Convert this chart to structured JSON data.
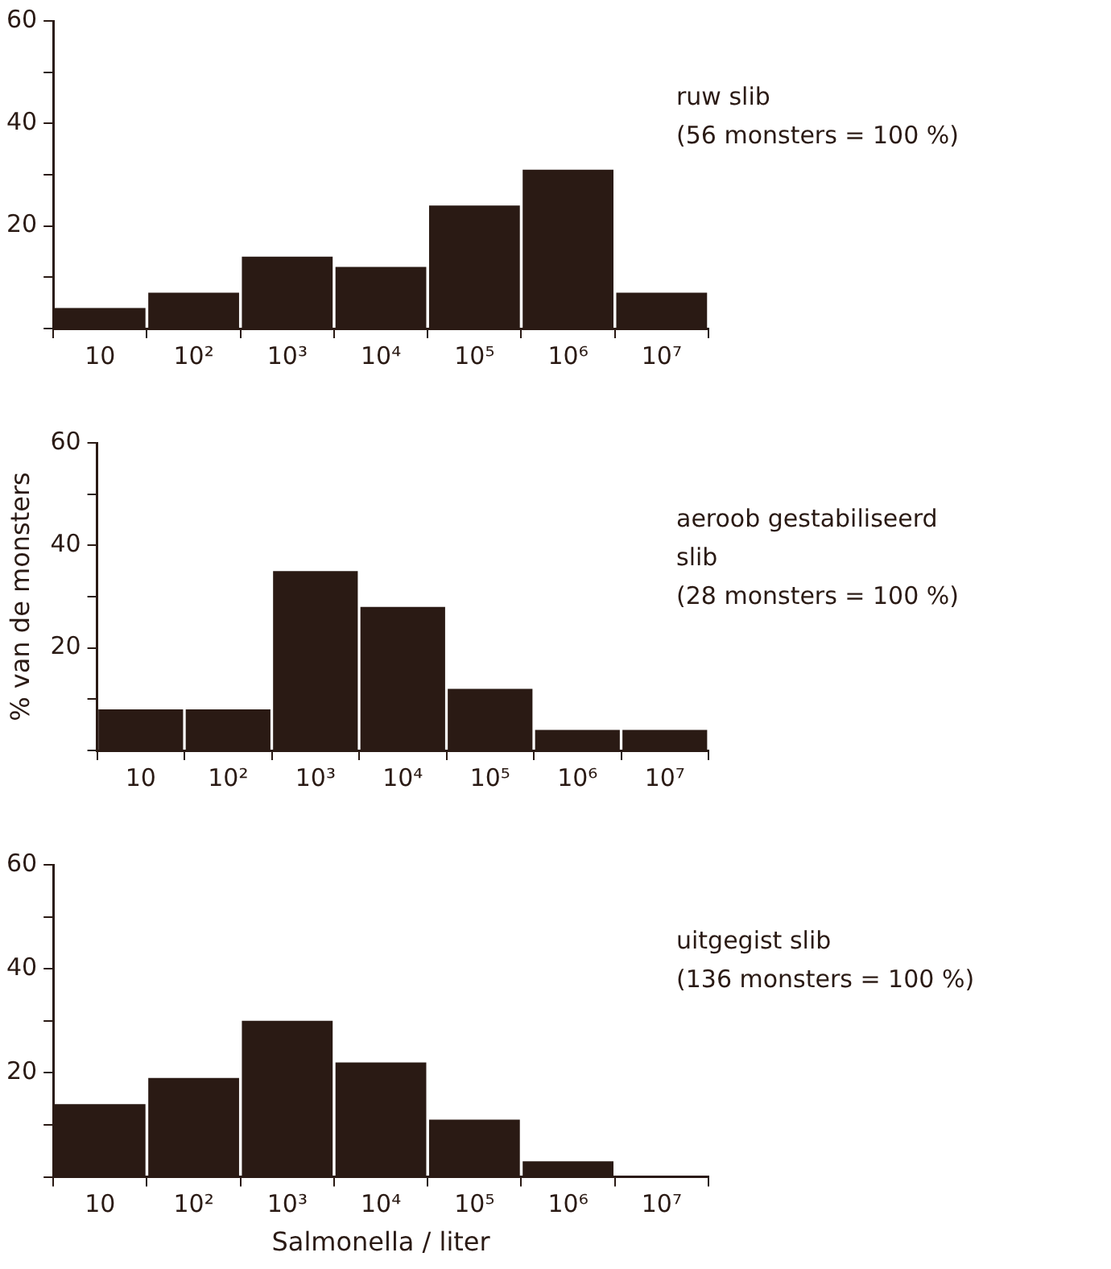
{
  "chart_data": [
    {
      "type": "bar",
      "categories": [
        "10",
        "10²",
        "10³",
        "10⁴",
        "10⁵",
        "10⁶",
        "10⁷"
      ],
      "values": [
        4,
        7,
        14,
        12,
        24,
        31,
        7
      ],
      "color": "#2a1a14",
      "ylim": [
        0,
        60
      ],
      "yticks": [
        {
          "value": 0,
          "label": null
        },
        {
          "value": 10,
          "label": null
        },
        20,
        {
          "value": 30,
          "label": null
        },
        40,
        {
          "value": 50,
          "label": null
        },
        60
      ],
      "grid": false,
      "legend": false,
      "annotations": [
        "ruw slib",
        "(56 monsters = 100 %)"
      ]
    },
    {
      "type": "bar",
      "categories": [
        "10",
        "10²",
        "10³",
        "10⁴",
        "10⁵",
        "10⁶",
        "10⁷"
      ],
      "values": [
        8,
        8,
        35,
        28,
        12,
        4,
        4
      ],
      "color": "#2a1a14",
      "ylim": [
        0,
        60
      ],
      "yticks": [
        {
          "value": 0,
          "label": null
        },
        {
          "value": 10,
          "label": null
        },
        20,
        {
          "value": 30,
          "label": null
        },
        40,
        {
          "value": 50,
          "label": null
        },
        60
      ],
      "grid": false,
      "legend": false,
      "ylabel": "% van de monsters",
      "annotations": [
        "aeroob gestabiliseerd",
        "slib",
        "(28 monsters = 100 %)"
      ]
    },
    {
      "type": "bar",
      "categories": [
        "10",
        "10²",
        "10³",
        "10⁴",
        "10⁵",
        "10⁶",
        "10⁷"
      ],
      "values": [
        14,
        19,
        30,
        22,
        11,
        3,
        0
      ],
      "color": "#2a1a14",
      "ylim": [
        0,
        60
      ],
      "yticks": [
        {
          "value": 0,
          "label": null
        },
        {
          "value": 10,
          "label": null
        },
        20,
        {
          "value": 30,
          "label": null
        },
        40,
        {
          "value": 50,
          "label": null
        },
        60
      ],
      "grid": false,
      "legend": false,
      "xlabel": "Salmonella / liter",
      "annotations": [
        "uitgegist slib",
        "(136 monsters = 100 %)"
      ]
    }
  ]
}
